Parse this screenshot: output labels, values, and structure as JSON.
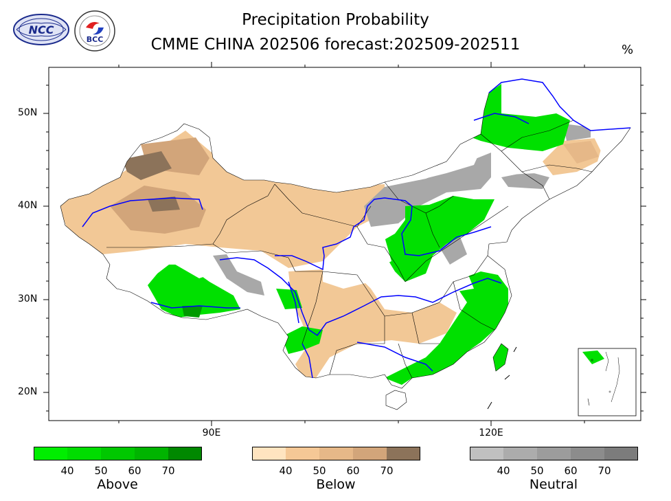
{
  "title": {
    "line1": "Precipitation Probability",
    "line2": "CMME CHINA 202506 forecast:202509-202511",
    "unit": "%"
  },
  "logos": {
    "ncc": "NCC",
    "bcc": "BCC"
  },
  "axes": {
    "lat_labels": [
      "50N",
      "40N",
      "30N",
      "20N"
    ],
    "lon_labels": [
      "90E",
      "120E"
    ]
  },
  "legends": [
    {
      "name": "Above",
      "ticks": [
        "40",
        "50",
        "60",
        "70"
      ],
      "colors": [
        "#00ee00",
        "#00dd00",
        "#00c800",
        "#00b400",
        "#008800"
      ]
    },
    {
      "name": "Below",
      "ticks": [
        "40",
        "50",
        "60",
        "70"
      ],
      "colors": [
        "#ffe4c0",
        "#f5c896",
        "#e6b888",
        "#d2a57a",
        "#8c735a"
      ]
    },
    {
      "name": "Neutral",
      "ticks": [
        "40",
        "50",
        "60",
        "70"
      ],
      "colors": [
        "#c0c0c0",
        "#acacac",
        "#9c9c9c",
        "#8c8c8c",
        "#7c7c7c"
      ]
    }
  ],
  "map_colors": {
    "river": "#0000ff",
    "border": "#000000",
    "above": "#00e000",
    "above_dark": "#009a00",
    "below": "#f2c896",
    "below_mid": "#d2a57a",
    "below_dark": "#8c735a",
    "neutral": "#a8a8a8"
  }
}
